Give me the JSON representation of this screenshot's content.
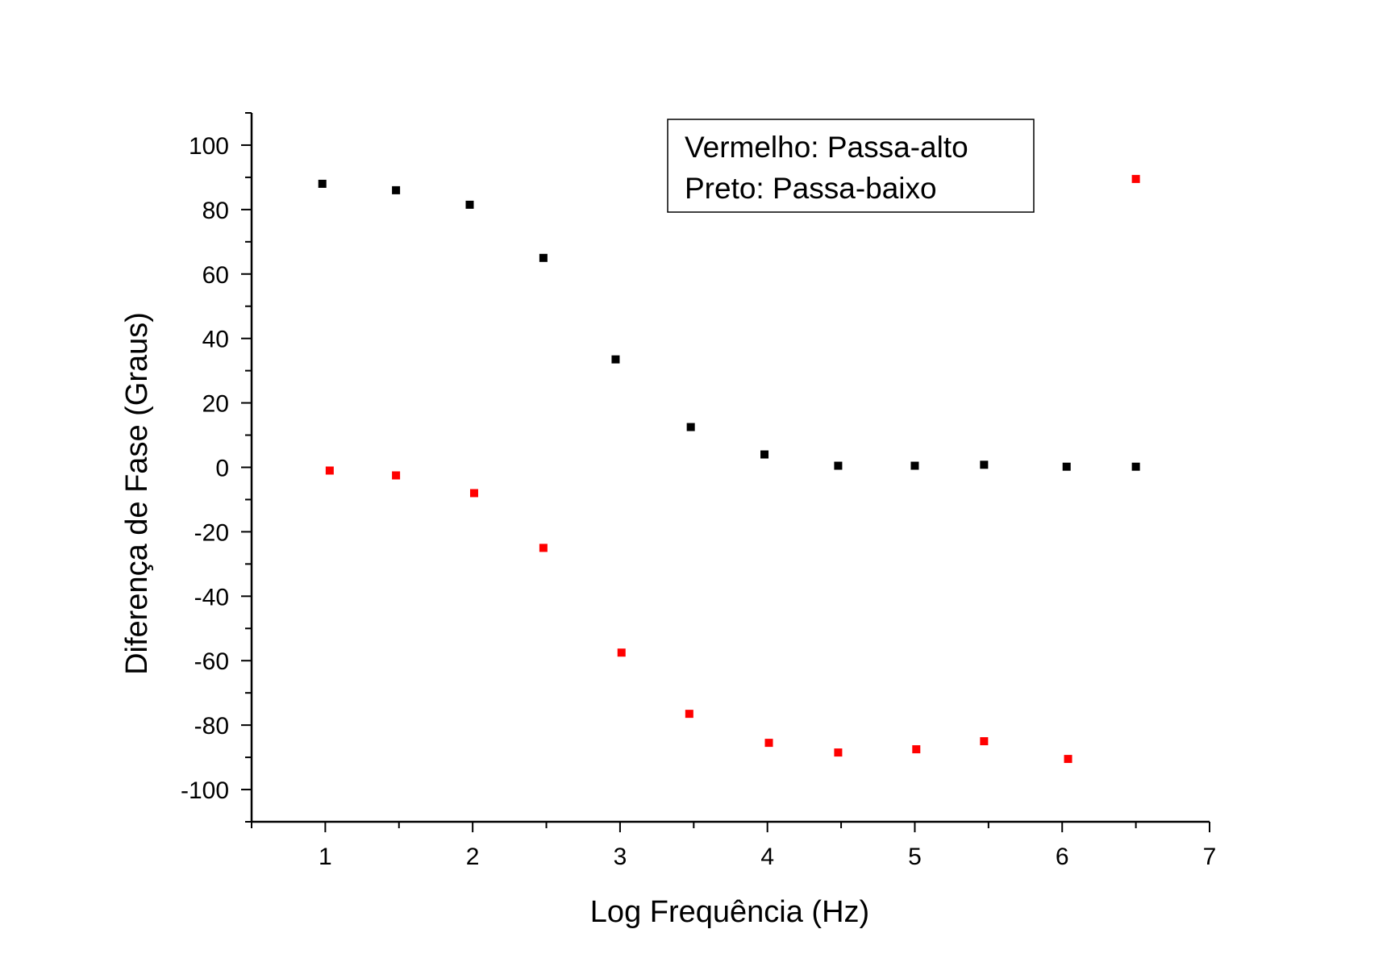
{
  "chart_data": {
    "type": "scatter",
    "title": "",
    "xlabel": "Log Frequência (Hz)",
    "ylabel": "Diferença de Fase (Graus)",
    "xlim": [
      0.5,
      7
    ],
    "ylim": [
      -110,
      110
    ],
    "x_ticks": [
      1,
      2,
      3,
      4,
      5,
      6,
      7
    ],
    "y_ticks": [
      100,
      80,
      60,
      40,
      20,
      0,
      -20,
      -40,
      -60,
      -80,
      -100
    ],
    "grid": false,
    "legend_position": "top-right",
    "legend_lines": [
      "Vermelho: Passa-alto",
      "Preto: Passa-baixo"
    ],
    "series": [
      {
        "color": "#000000",
        "marker": "square",
        "x": [
          0.98,
          1.48,
          1.98,
          2.48,
          2.97,
          3.48,
          3.98,
          4.48,
          5.0,
          5.47,
          6.03,
          6.5
        ],
        "y": [
          88,
          86,
          81.5,
          65,
          33.5,
          12.5,
          4,
          0.5,
          0.5,
          0.8,
          0.2,
          0.2
        ]
      },
      {
        "color": "#ff0000",
        "marker": "square",
        "x": [
          1.03,
          1.48,
          2.01,
          2.48,
          3.01,
          3.47,
          4.01,
          4.48,
          5.01,
          5.47,
          6.04,
          6.5
        ],
        "y": [
          -1,
          -2.5,
          -8,
          -25,
          -57.5,
          -76.5,
          -85.5,
          -88.5,
          -87.5,
          -85,
          -90.5,
          89.5
        ]
      }
    ]
  }
}
